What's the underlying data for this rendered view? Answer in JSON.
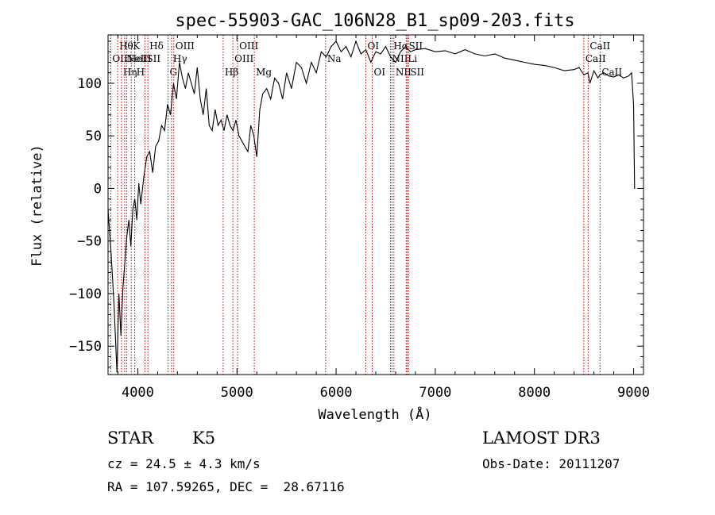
{
  "chart_data": {
    "type": "line",
    "title": "spec-55903-GAC_106N28_B1_sp09-203.fits",
    "xlabel": "Wavelength (Å)",
    "ylabel": "Flux (relative)",
    "xlim": [
      3700,
      9100
    ],
    "ylim": [
      -177,
      146
    ],
    "x_ticks": [
      4000,
      5000,
      6000,
      7000,
      8000,
      9000
    ],
    "y_ticks": [
      -150,
      -100,
      -50,
      0,
      50,
      100
    ],
    "x_tick_labels": [
      "4000",
      "5000",
      "6000",
      "7000",
      "8000",
      "9000"
    ],
    "y_tick_labels": [
      "−150",
      "−100",
      "−50",
      "0",
      "50",
      "100"
    ],
    "series": [
      {
        "name": "flux",
        "x": [
          3700,
          3730,
          3760,
          3790,
          3810,
          3830,
          3850,
          3870,
          3890,
          3910,
          3930,
          3950,
          3970,
          3990,
          4010,
          4030,
          4060,
          4090,
          4120,
          4150,
          4180,
          4210,
          4240,
          4270,
          4300,
          4330,
          4360,
          4390,
          4420,
          4450,
          4480,
          4510,
          4540,
          4570,
          4600,
          4630,
          4660,
          4690,
          4720,
          4750,
          4780,
          4810,
          4840,
          4870,
          4900,
          4930,
          4960,
          4990,
          5020,
          5050,
          5080,
          5110,
          5140,
          5170,
          5200,
          5230,
          5260,
          5300,
          5340,
          5380,
          5420,
          5460,
          5500,
          5550,
          5600,
          5650,
          5700,
          5750,
          5800,
          5850,
          5900,
          5950,
          6000,
          6050,
          6100,
          6150,
          6200,
          6250,
          6300,
          6350,
          6400,
          6450,
          6500,
          6550,
          6600,
          6650,
          6700,
          6750,
          6800,
          6900,
          7000,
          7100,
          7200,
          7300,
          7400,
          7500,
          7600,
          7700,
          7800,
          7900,
          8000,
          8100,
          8200,
          8300,
          8400,
          8450,
          8500,
          8540,
          8560,
          8600,
          8640,
          8660,
          8700,
          8750,
          8800,
          8850,
          8900,
          8950,
          8980,
          9000,
          9010,
          9015
        ],
        "y": [
          -20,
          -60,
          -110,
          -175,
          -100,
          -140,
          -95,
          -70,
          -45,
          -30,
          -55,
          -20,
          -10,
          -30,
          5,
          -15,
          10,
          30,
          35,
          15,
          40,
          45,
          60,
          55,
          80,
          70,
          100,
          85,
          120,
          105,
          95,
          110,
          100,
          90,
          115,
          85,
          70,
          95,
          60,
          55,
          75,
          60,
          65,
          55,
          70,
          60,
          55,
          65,
          50,
          45,
          40,
          35,
          60,
          50,
          30,
          75,
          90,
          95,
          85,
          105,
          100,
          85,
          110,
          95,
          120,
          115,
          100,
          120,
          110,
          130,
          125,
          135,
          140,
          130,
          135,
          125,
          140,
          128,
          132,
          120,
          130,
          128,
          135,
          125,
          120,
          130,
          135,
          130,
          132,
          133,
          130,
          131,
          128,
          132,
          128,
          126,
          128,
          124,
          122,
          120,
          118,
          117,
          115,
          112,
          113,
          115,
          108,
          110,
          100,
          112,
          105,
          108,
          110,
          107,
          106,
          108,
          105,
          107,
          110,
          80,
          0,
          0
        ]
      }
    ],
    "line_markers": [
      {
        "wavelength": 3727,
        "label": "OII",
        "row": 2
      },
      {
        "wavelength": 3797,
        "label": "Hθ",
        "row": 1
      },
      {
        "wavelength": 3835,
        "label": "Hη",
        "row": 3
      },
      {
        "wavelength": 3868,
        "label": "NeIII",
        "row": 2
      },
      {
        "wavelength": 3889,
        "label": "HeI",
        "row": 2
      },
      {
        "wavelength": 3934,
        "label": "K",
        "row": 1
      },
      {
        "wavelength": 3969,
        "label": "H",
        "row": 3
      },
      {
        "wavelength": 4072,
        "label": "SII",
        "row": 2
      },
      {
        "wavelength": 4102,
        "label": "Hδ",
        "row": 1
      },
      {
        "wavelength": 4305,
        "label": "G",
        "row": 3
      },
      {
        "wavelength": 4340,
        "label": "Hγ",
        "row": 2
      },
      {
        "wavelength": 4363,
        "label": "OIII",
        "row": 1
      },
      {
        "wavelength": 4861,
        "label": "Hβ",
        "row": 3
      },
      {
        "wavelength": 4959,
        "label": "OIII",
        "row": 2
      },
      {
        "wavelength": 5007,
        "label": "OIII",
        "row": 1
      },
      {
        "wavelength": 5175,
        "label": "Mg",
        "row": 3
      },
      {
        "wavelength": 5894,
        "label": "Na",
        "row": 2
      },
      {
        "wavelength": 6300,
        "label": "OI",
        "row": 1
      },
      {
        "wavelength": 6364,
        "label": "OI",
        "row": 3
      },
      {
        "wavelength": 6548,
        "label": "NII",
        "row": 2
      },
      {
        "wavelength": 6563,
        "label": "Hα",
        "row": 1
      },
      {
        "wavelength": 6583,
        "label": "NII",
        "row": 3
      },
      {
        "wavelength": 6707,
        "label": "Li",
        "row": 2
      },
      {
        "wavelength": 6716,
        "label": "SII",
        "row": 1
      },
      {
        "wavelength": 6731,
        "label": "SII",
        "row": 3
      },
      {
        "wavelength": 8498,
        "label": "CaII",
        "row": 2
      },
      {
        "wavelength": 8542,
        "label": "CaII",
        "row": 1
      },
      {
        "wavelength": 8662,
        "label": "CaII",
        "row": 3
      }
    ]
  },
  "info": {
    "class": "STAR",
    "subclass": "K5",
    "survey": "LAMOST DR3",
    "cz": "cz = 24.5 ± 4.3 km/s",
    "obs_date": "Obs-Date: 20111207",
    "coords": "RA = 107.59265, DEC =  28.67116"
  }
}
